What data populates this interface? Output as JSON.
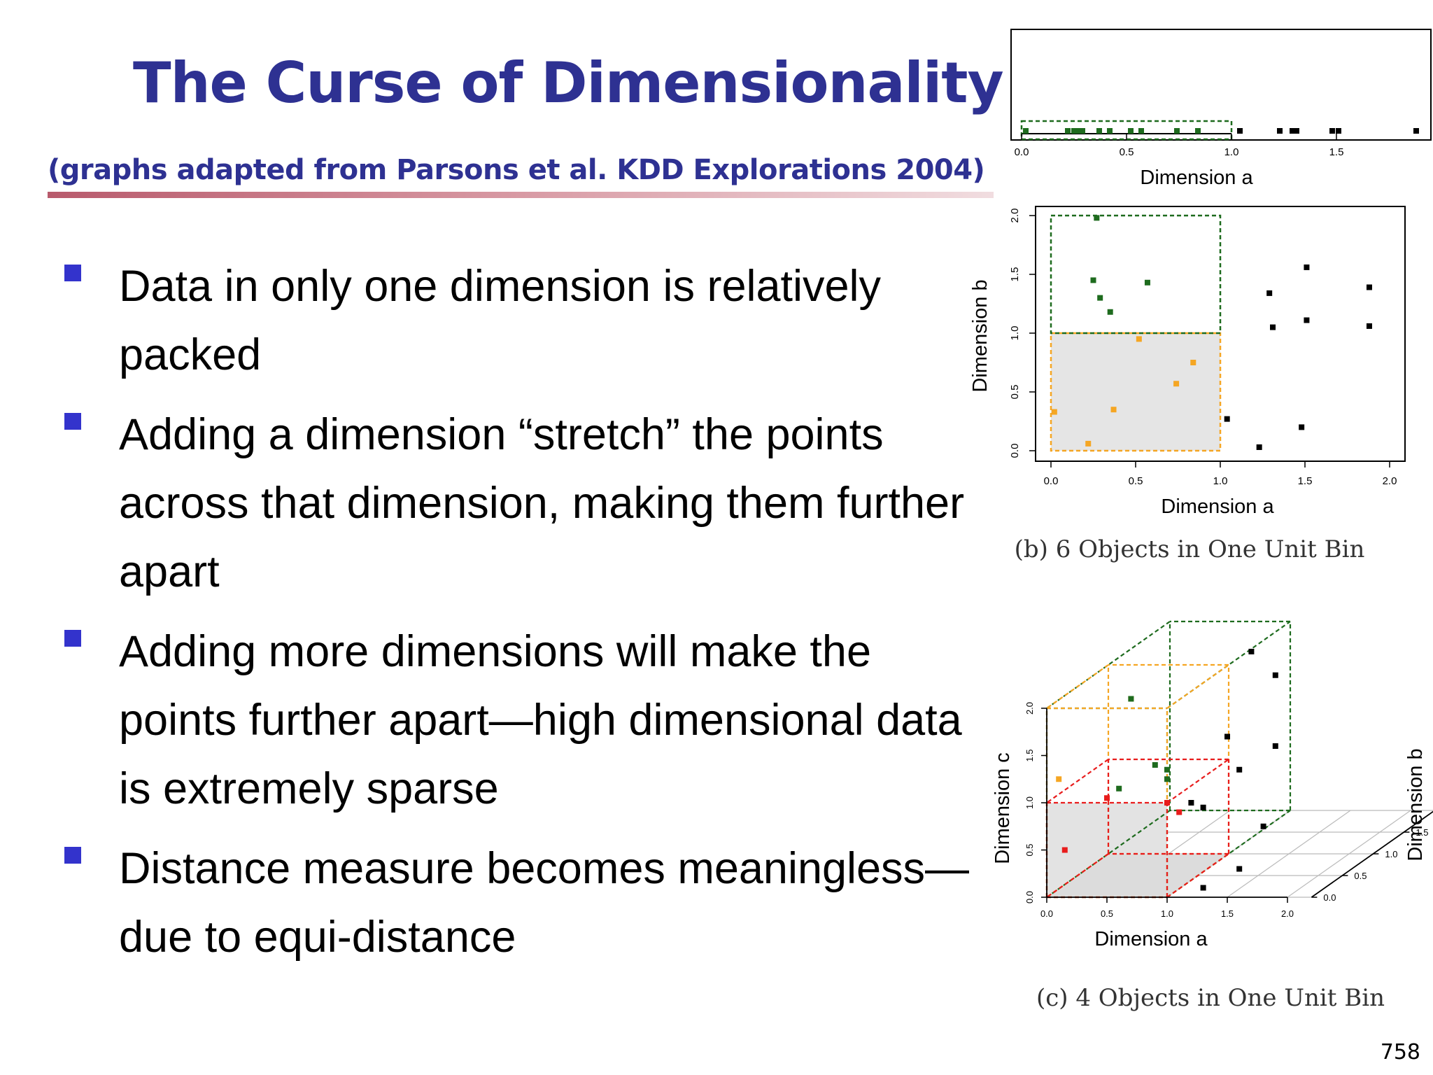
{
  "slide": {
    "title": "The Curse of Dimensionality",
    "subtitle": "(graphs adapted from Parsons et al. KDD Explorations 2004)",
    "page_number": "758",
    "bullets": [
      "Data in only one dimension is relatively packed",
      "Adding a dimension “stretch” the points across that dimension, making them further apart",
      "Adding more dimensions will make the points further apart—high dimensional data is extremely sparse",
      "Distance measure becomes meaningless—due to equi-distance"
    ]
  },
  "colors": {
    "title": "#2e3192",
    "bullet_marker": "#3333cc",
    "in_bin_green": "#1e6b1e",
    "in_bin_orange": "#f5a623",
    "in_bin_red": "#e81c1c",
    "outside_black": "#000000"
  },
  "chart_data": [
    {
      "type": "scatter",
      "xlabel": "Dimension a",
      "xlim": [
        0,
        2
      ],
      "xticks": [
        "0.0",
        "0.5",
        "1.0",
        "1.5"
      ],
      "bin": {
        "x": [
          0,
          1
        ]
      },
      "points_in_bin": [
        0.02,
        0.22,
        0.25,
        0.27,
        0.29,
        0.37,
        0.42,
        0.52,
        0.57,
        0.74,
        0.84
      ],
      "points_outside": [
        1.04,
        1.23,
        1.29,
        1.31,
        1.48,
        1.51,
        1.88
      ]
    },
    {
      "type": "scatter",
      "caption": "(b) 6 Objects in One Unit Bin",
      "xlabel": "Dimension a",
      "ylabel": "Dimension b",
      "xlim": [
        0,
        2
      ],
      "ylim": [
        0,
        2
      ],
      "xticks": [
        "0.0",
        "0.5",
        "1.0",
        "1.5",
        "2.0"
      ],
      "yticks": [
        "0.0",
        "0.5",
        "1.0",
        "1.5",
        "2.0"
      ],
      "bins": {
        "unit_bin": {
          "x": [
            0,
            1
          ],
          "y": [
            0,
            1
          ]
        },
        "upper_bin": {
          "x": [
            0,
            1
          ],
          "y": [
            1,
            2
          ]
        }
      },
      "points_orange": [
        [
          0.02,
          0.33
        ],
        [
          0.22,
          0.06
        ],
        [
          0.37,
          0.35
        ],
        [
          0.52,
          0.95
        ],
        [
          0.74,
          0.57
        ],
        [
          0.84,
          0.75
        ]
      ],
      "points_green": [
        [
          0.27,
          1.98
        ],
        [
          0.25,
          1.45
        ],
        [
          0.29,
          1.3
        ],
        [
          0.57,
          1.43
        ],
        [
          0.35,
          1.18
        ]
      ],
      "points_black": [
        [
          1.04,
          0.27
        ],
        [
          1.23,
          0.03
        ],
        [
          1.29,
          1.34
        ],
        [
          1.31,
          1.05
        ],
        [
          1.48,
          0.2
        ],
        [
          1.51,
          1.56
        ],
        [
          1.51,
          1.11
        ],
        [
          1.88,
          1.39
        ],
        [
          1.88,
          1.06
        ]
      ]
    },
    {
      "type": "scatter",
      "caption": "(c) 4 Objects in One Unit Bin",
      "xlabel": "Dimension a",
      "ylabel": "Dimension c",
      "zlabel": "Dimension b",
      "xticks": [
        "0.0",
        "0.5",
        "1.0",
        "1.5",
        "2.0"
      ],
      "yticks": [
        "0.0",
        "0.5",
        "1.0",
        "1.5",
        "2.0"
      ],
      "zticks": [
        "0.0",
        "0.5",
        "1.0",
        "1.5",
        "2.0"
      ],
      "points_red": [
        [
          0.15,
          0.25,
          0.5
        ],
        [
          0.5,
          0.2,
          1.05
        ],
        [
          1.0,
          0.3,
          1.0
        ],
        [
          1.1,
          0.1,
          0.9
        ]
      ],
      "points_orange": [
        [
          0.1,
          0.2,
          1.25
        ],
        [
          0.7,
          1.5,
          2.1
        ]
      ],
      "points_green": [
        [
          0.7,
          1.9,
          2.1
        ],
        [
          0.9,
          1.5,
          1.4
        ],
        [
          0.6,
          0.4,
          1.15
        ],
        [
          1.0,
          1.0,
          1.25
        ],
        [
          1.0,
          0.7,
          1.35
        ]
      ],
      "points_black": [
        [
          1.2,
          1.2,
          1.0
        ],
        [
          1.3,
          1.5,
          0.95
        ],
        [
          1.5,
          1.3,
          1.7
        ],
        [
          1.6,
          1.2,
          1.35
        ],
        [
          1.9,
          1.6,
          1.6
        ],
        [
          1.7,
          1.8,
          2.6
        ],
        [
          1.9,
          1.2,
          2.35
        ],
        [
          1.8,
          1.5,
          0.75
        ],
        [
          1.6,
          1.5,
          0.3
        ],
        [
          1.3,
          0.6,
          0.1
        ]
      ]
    }
  ]
}
